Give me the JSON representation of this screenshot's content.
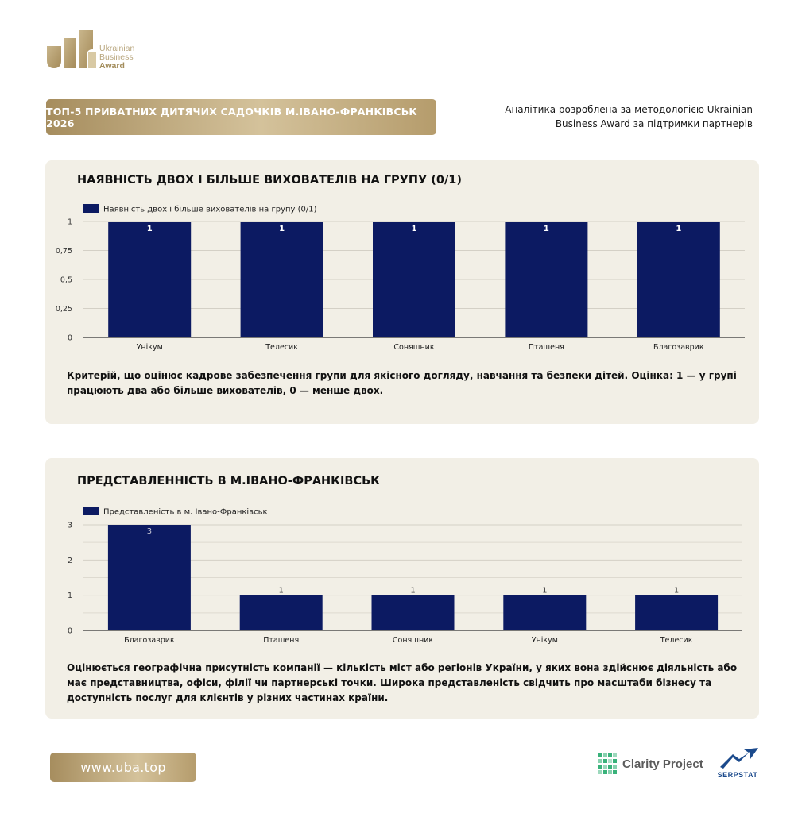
{
  "brand": {
    "logo_line1": "Ukrainian",
    "logo_line2": "Business",
    "logo_line3": "Award",
    "gold": "#b39a6a"
  },
  "header": {
    "title": "ТОП-5 ПРИВАТНИХ ДИТЯЧИХ САДОЧКІВ М.ІВАНО-ФРАНКІВСЬК 2026",
    "methodology": "Аналітика розроблена за методологією Ukrainian Business Award за підтримки партнерів"
  },
  "sections": [
    {
      "title": "НАЯВНІСТЬ ДВОХ І БІЛЬШЕ ВИХОВАТЕЛІВ НА ГРУПУ (0/1)",
      "description": "Критерій, що оцінює кадрове забезпечення групи для якісного догляду, навчання та безпеки дітей. Оцінка: 1 — у групі працюють два або більше вихователів, 0 — менше двох."
    },
    {
      "title": "ПРЕДСТАВЛЕННІСТЬ В М.ІВАНО-ФРАНКІВСЬК",
      "description": "Оцінюється географічна присутність компанії — кількість міст або регіонів України, у яких вона здійснює діяльність або має представництва, офіси, філії чи партнерські точки. Широка представленість свідчить про масштаби бізнесу та доступність послуг для клієнтів у різних частинах країни."
    }
  ],
  "chart_data": [
    {
      "type": "bar",
      "categories": [
        "Унікум",
        "Телесик",
        "Соняшник",
        "Пташеня",
        "Благозаврик"
      ],
      "series": [
        {
          "name": "Наявність двох і більше вихователів на групу (0/1)",
          "values": [
            1,
            1,
            1,
            1,
            1
          ],
          "color": "#0c1a62"
        }
      ],
      "yticks": [
        "0",
        "0,25",
        "0,5",
        "0,75",
        "1"
      ],
      "ytick_values": [
        0,
        0.25,
        0.5,
        0.75,
        1
      ],
      "ylim": [
        0,
        1
      ],
      "data_labels": [
        "1",
        "1",
        "1",
        "1",
        "1"
      ],
      "grid": true,
      "legend": "top-left"
    },
    {
      "type": "bar",
      "categories": [
        "Благозаврик",
        "Пташеня",
        "Соняшник",
        "Унікум",
        "Телесик"
      ],
      "series": [
        {
          "name": "Представленість в м. Івано-Франківськ",
          "values": [
            3,
            1,
            1,
            1,
            1
          ],
          "color": "#0c1a62"
        }
      ],
      "yticks": [
        "0",
        "1",
        "2",
        "3"
      ],
      "ytick_values": [
        0,
        1,
        2,
        3
      ],
      "ylim": [
        0,
        3
      ],
      "data_labels": [
        "3",
        "1",
        "1",
        "1",
        "1"
      ],
      "grid": true,
      "legend": "top-left"
    }
  ],
  "footer": {
    "site": "www.uba.top",
    "partner1": "Clarity Project",
    "partner2": "SERPSTAT"
  }
}
